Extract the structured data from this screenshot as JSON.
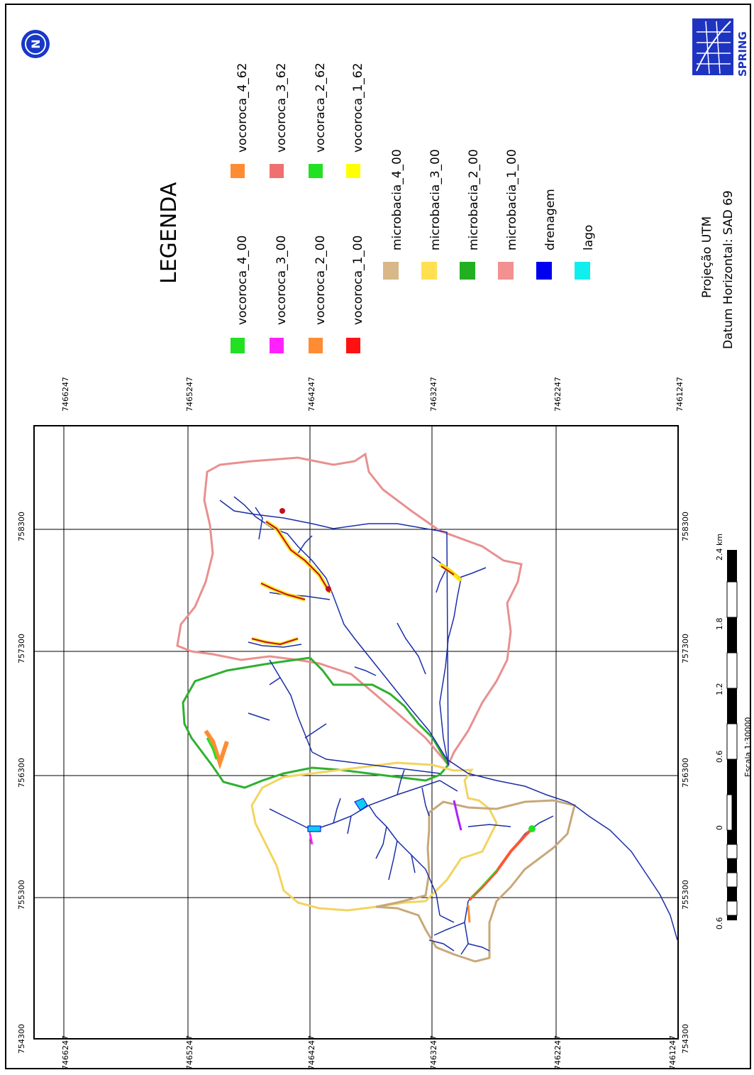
{
  "legend": {
    "title": "LEGENDA",
    "items": [
      {
        "label": "vocoroca_4_62",
        "color": "#ff8c33"
      },
      {
        "label": "vocoroca_3_62",
        "color": "#f07070"
      },
      {
        "label": "vocoraca_2_62",
        "color": "#22e022"
      },
      {
        "label": "vocoroca_1_62",
        "color": "#ffff00"
      },
      {
        "label": "vocoroca_4_00",
        "color": "#22e022"
      },
      {
        "label": "vocoroca_3_00",
        "color": "#ff22ff"
      },
      {
        "label": "vocoroca_2_00",
        "color": "#ff8c33"
      },
      {
        "label": "vocoroca_1_00",
        "color": "#ff1111"
      },
      {
        "label": "microbacia_4_00",
        "color": "#d8b888"
      },
      {
        "label": "microbacia_3_00",
        "color": "#ffe050"
      },
      {
        "label": "microbacia_2_00",
        "color": "#22b022"
      },
      {
        "label": "microbacia_1_00",
        "color": "#f39090"
      },
      {
        "label": "drenagem",
        "color": "#0000ee"
      },
      {
        "label": "lago",
        "color": "#11eeee"
      }
    ]
  },
  "projection": "Projeção UTM",
  "datum": "Datum Horizontal: SAD 69",
  "logo_text": "SPRING",
  "north_symbol": "N",
  "grid": {
    "easting_labels": [
      "754300",
      "755300",
      "756300",
      "757300",
      "758300"
    ],
    "northing_labels": [
      "7466247",
      "7465247",
      "7464247",
      "7463247",
      "7462247",
      "7461247"
    ]
  },
  "scale": {
    "ticks": [
      "0.6",
      "0",
      "0.6",
      "1.2",
      "1.8",
      "2.4 km"
    ],
    "caption": "Escala 1:30000"
  },
  "colors": {
    "drainage": "#1a2ea8",
    "basin1": "#e89090",
    "basin2": "#2fb02f",
    "basin3": "#f2d460",
    "basin4": "#c8a878"
  }
}
